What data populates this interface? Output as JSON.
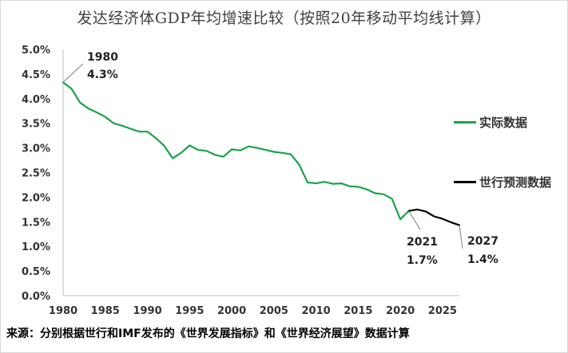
{
  "chart_data": {
    "type": "line",
    "title": "发达经济体GDP年均增速比较（按照20年移动平均线计算）",
    "xlabel": "",
    "ylabel": "",
    "xlim": [
      1980,
      2027
    ],
    "ylim": [
      0.0,
      5.0
    ],
    "x_ticks": [
      1980,
      1985,
      1990,
      1995,
      2000,
      2005,
      2010,
      2015,
      2020,
      2025
    ],
    "y_ticks": [
      "0.0%",
      "0.5%",
      "1.0%",
      "1.5%",
      "2.0%",
      "2.5%",
      "3.0%",
      "3.5%",
      "4.0%",
      "4.5%",
      "5.0%"
    ],
    "series": [
      {
        "name": "实际数据",
        "color": "#1aa34a",
        "x": [
          1980,
          1981,
          1982,
          1983,
          1984,
          1985,
          1986,
          1987,
          1988,
          1989,
          1990,
          1991,
          1992,
          1993,
          1994,
          1995,
          1996,
          1997,
          1998,
          1999,
          2000,
          2001,
          2002,
          2003,
          2004,
          2005,
          2006,
          2007,
          2008,
          2009,
          2010,
          2011,
          2012,
          2013,
          2014,
          2015,
          2016,
          2017,
          2018,
          2019,
          2020,
          2021
        ],
        "values": [
          4.33,
          4.2,
          3.92,
          3.8,
          3.72,
          3.63,
          3.5,
          3.45,
          3.39,
          3.33,
          3.33,
          3.2,
          3.04,
          2.79,
          2.9,
          3.05,
          2.96,
          2.94,
          2.86,
          2.82,
          2.97,
          2.95,
          3.03,
          3.0,
          2.96,
          2.92,
          2.9,
          2.87,
          2.66,
          2.3,
          2.28,
          2.31,
          2.27,
          2.28,
          2.22,
          2.21,
          2.16,
          2.08,
          2.06,
          1.97,
          1.55,
          1.72
        ]
      },
      {
        "name": "世行预测数据",
        "color": "#000000",
        "x": [
          2021,
          2022,
          2023,
          2024,
          2025,
          2026,
          2027
        ],
        "values": [
          1.72,
          1.75,
          1.71,
          1.61,
          1.56,
          1.49,
          1.43
        ]
      }
    ],
    "annotations": [
      {
        "year": "1980",
        "value": "4.3%"
      },
      {
        "year": "2021",
        "value": "1.7%"
      },
      {
        "year": "2027",
        "value": "1.4%"
      }
    ],
    "legend_position": "right"
  },
  "footer": {
    "source": "来源：分别根据世行和IMF发布的《世界发展指标》和《世界经济展望》数据计算"
  }
}
